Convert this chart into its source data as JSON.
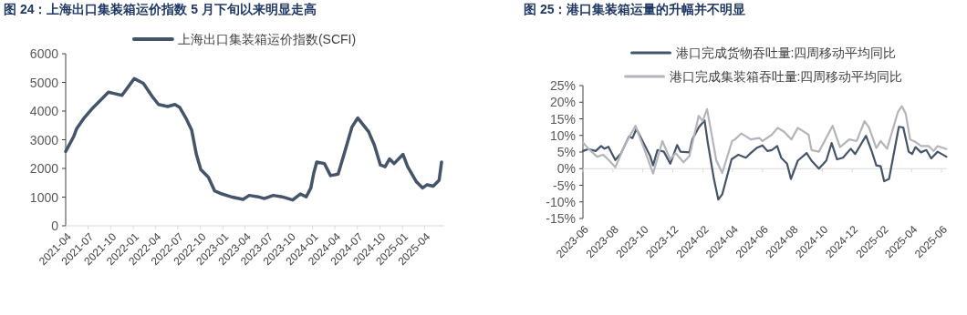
{
  "chart_data": [
    {
      "type": "line",
      "title": "图 24：上海出口集装箱运价指数 5 月下旬以来明显走高",
      "legend": "top",
      "x": [
        "2021-04-01",
        "2021-05-04",
        "2021-05-16",
        "2021-06-15",
        "2021-07-16",
        "2021-08-22",
        "2021-09-22",
        "2021-10-22",
        "2021-11-16",
        "2022-01-05",
        "2022-02-11",
        "2022-03-20",
        "2022-04-14",
        "2022-05-21",
        "2022-06-20",
        "2022-07-09",
        "2022-08-03",
        "2022-08-27",
        "2022-09-15",
        "2022-10-03",
        "2022-11-03",
        "2022-11-28",
        "2022-12-28",
        "2023-02-03",
        "2023-03-24",
        "2023-04-18",
        "2023-05-25",
        "2023-06-18",
        "2023-07-25",
        "2023-08-30",
        "2023-10-12",
        "2023-11-12",
        "2023-12-06",
        "2023-12-25",
        "2024-01-06",
        "2024-01-18",
        "2024-02-18",
        "2024-03-14",
        "2024-04-14",
        "2024-05-15",
        "2024-06-09",
        "2024-07-03",
        "2024-08-16",
        "2024-09-09",
        "2024-10-03",
        "2024-10-22",
        "2024-11-09",
        "2024-11-28",
        "2025-01-03",
        "2025-01-22",
        "2025-02-27",
        "2025-03-24",
        "2025-04-11",
        "2025-05-06",
        "2025-05-30",
        "2025-06-09"
      ],
      "series": [
        {
          "name": "上海出口集装箱运价指数(SCFI)",
          "color": "#44546a",
          "values": [
            2590,
            3120,
            3390,
            3760,
            4070,
            4390,
            4660,
            4600,
            4550,
            5130,
            4970,
            4500,
            4230,
            4160,
            4230,
            4130,
            3760,
            3330,
            2490,
            1960,
            1690,
            1220,
            1110,
            1010,
            920,
            1060,
            1010,
            950,
            1060,
            1010,
            900,
            1110,
            1010,
            1320,
            1850,
            2220,
            2170,
            1750,
            1800,
            2700,
            3440,
            3760,
            3280,
            2800,
            2120,
            2060,
            2330,
            2170,
            2490,
            2060,
            1530,
            1320,
            1430,
            1380,
            1590,
            2220
          ]
        }
      ],
      "xlim": [
        "2021-04-01",
        "2025-06-20"
      ],
      "xticks": [
        "2021-04",
        "2021-07",
        "2021-10",
        "2022-01",
        "2022-04",
        "2022-07",
        "2022-10",
        "2023-01",
        "2023-04",
        "2023-07",
        "2023-10",
        "2024-01",
        "2024-04",
        "2024-07",
        "2024-10",
        "2025-01",
        "2025-04"
      ],
      "ylim": [
        0,
        6000
      ],
      "yticks": [
        0,
        1000,
        2000,
        3000,
        4000,
        5000,
        6000
      ]
    },
    {
      "type": "line",
      "title": "图 25：港口集装箱运量的升幅并不明显",
      "legend": "top",
      "series": [
        {
          "name": "港口完成货物吞吐量:四周移动平均同比",
          "color": "#44546a",
          "x": [
            "2023-06-01",
            "2023-06-12",
            "2023-06-27",
            "2023-07-08",
            "2023-07-15",
            "2023-07-23",
            "2023-08-06",
            "2023-08-18",
            "2023-09-03",
            "2023-09-10",
            "2023-09-18",
            "2023-10-16",
            "2023-10-22",
            "2023-10-31",
            "2023-11-13",
            "2023-11-26",
            "2023-12-10",
            "2023-12-17",
            "2024-01-04",
            "2024-01-10",
            "2024-01-23",
            "2024-02-04",
            "2024-02-10",
            "2024-02-23",
            "2024-03-03",
            "2024-03-11",
            "2024-03-30",
            "2024-04-13",
            "2024-04-28",
            "2024-05-08",
            "2024-05-20",
            "2024-06-01",
            "2024-06-11",
            "2024-06-20",
            "2024-07-01",
            "2024-07-09",
            "2024-07-21",
            "2024-07-29",
            "2024-08-12",
            "2024-08-30",
            "2024-09-09",
            "2024-09-24",
            "2024-10-09",
            "2024-10-20",
            "2024-10-31",
            "2024-11-12",
            "2024-11-28",
            "2024-12-07",
            "2024-12-29",
            "2025-01-10",
            "2025-01-19",
            "2025-01-28",
            "2025-02-04",
            "2025-02-14",
            "2025-03-06",
            "2025-03-15",
            "2025-03-26",
            "2025-04-02",
            "2025-04-09",
            "2025-04-20",
            "2025-05-01",
            "2025-05-11",
            "2025-05-24",
            "2025-06-11"
          ],
          "values": [
            5.3,
            5.9,
            5.3,
            6.8,
            6.0,
            6.6,
            2.6,
            4.7,
            9.7,
            9.2,
            12.0,
            3.8,
            1.0,
            5.6,
            5.1,
            1.5,
            7.1,
            5.1,
            4.9,
            8.8,
            12.4,
            14.5,
            8.3,
            -3.1,
            -9.3,
            -7.7,
            2.8,
            4.2,
            3.3,
            4.7,
            6.2,
            7.0,
            5.3,
            5.6,
            6.8,
            3.3,
            1.5,
            -3.1,
            2.4,
            4.7,
            2.4,
            0.0,
            2.4,
            7.7,
            2.8,
            3.3,
            6.0,
            4.4,
            9.9,
            5.1,
            1.0,
            0.7,
            -3.8,
            -3.1,
            12.6,
            12.4,
            5.1,
            4.4,
            6.5,
            4.9,
            5.6,
            3.1,
            5.1,
            3.6
          ]
        },
        {
          "name": "港口完成集装箱吞吐量:四周移动平均同比",
          "color": "#b4b4bc",
          "x": [
            "2023-06-01",
            "2023-06-12",
            "2023-06-30",
            "2023-07-12",
            "2023-07-25",
            "2023-08-06",
            "2023-08-25",
            "2023-09-16",
            "2023-10-07",
            "2023-10-22",
            "2023-11-10",
            "2023-11-26",
            "2023-12-07",
            "2023-12-23",
            "2024-01-04",
            "2024-01-23",
            "2024-01-31",
            "2024-02-09",
            "2024-02-18",
            "2024-02-28",
            "2024-03-11",
            "2024-03-31",
            "2024-04-06",
            "2024-04-19",
            "2024-05-08",
            "2024-05-26",
            "2024-06-01",
            "2024-06-20",
            "2024-07-02",
            "2024-07-15",
            "2024-07-30",
            "2024-08-12",
            "2024-09-03",
            "2024-09-09",
            "2024-09-24",
            "2024-10-22",
            "2024-11-06",
            "2024-11-25",
            "2024-12-10",
            "2024-12-26",
            "2025-01-04",
            "2025-01-19",
            "2025-01-28",
            "2025-02-10",
            "2025-03-04",
            "2025-03-12",
            "2025-03-20",
            "2025-03-29",
            "2025-04-08",
            "2025-04-20",
            "2025-05-06",
            "2025-05-16",
            "2025-05-24",
            "2025-06-11"
          ],
          "values": [
            7.9,
            6.0,
            3.6,
            4.2,
            2.4,
            0.4,
            7.0,
            12.9,
            4.7,
            -1.5,
            8.3,
            2.8,
            4.7,
            1.9,
            3.8,
            15.9,
            14.3,
            17.9,
            10.6,
            2.4,
            -1.3,
            8.3,
            8.8,
            10.6,
            8.8,
            9.2,
            8.3,
            10.2,
            12.3,
            11.1,
            8.8,
            12.3,
            10.2,
            5.6,
            5.1,
            12.9,
            6.5,
            8.8,
            8.3,
            14.3,
            12.4,
            6.2,
            8.3,
            6.0,
            17.0,
            18.8,
            16.6,
            8.8,
            8.1,
            6.8,
            6.8,
            5.3,
            6.8,
            5.9
          ]
        }
      ],
      "xlim": [
        "2023-06-01",
        "2025-06-12"
      ],
      "xticks": [
        "2023-06",
        "2023-08",
        "2023-10",
        "2023-12",
        "2024-02",
        "2024-04",
        "2024-06",
        "2024-08",
        "2024-10",
        "2024-12",
        "2025-02",
        "2025-04",
        "2025-06"
      ],
      "ylim": [
        -15,
        25
      ],
      "yticks": [
        {
          "value": -15,
          "label": "-15%"
        },
        {
          "value": -10,
          "label": "-10%"
        },
        {
          "value": -5,
          "label": "-5%"
        },
        {
          "value": 0,
          "label": "0%"
        },
        {
          "value": 5,
          "label": "5%"
        },
        {
          "value": 10,
          "label": "10%"
        },
        {
          "value": 15,
          "label": "15%"
        },
        {
          "value": 20,
          "label": "20%"
        },
        {
          "value": 25,
          "label": "25%"
        }
      ]
    }
  ]
}
